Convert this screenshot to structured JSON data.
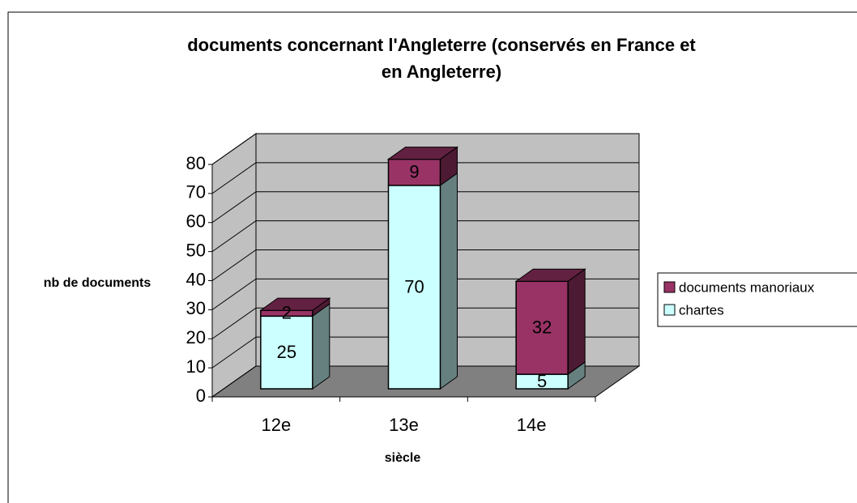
{
  "chart_data": {
    "type": "bar3d-stacked",
    "title_lines": [
      "documents concernant l'Angleterre (conservés en France et",
      "en Angleterre)"
    ],
    "y_label": "nb de documents",
    "x_label": "siècle",
    "categories": [
      "12e",
      "13e",
      "14e"
    ],
    "series": [
      {
        "name": "chartes",
        "color": "#ccffff",
        "values": [
          25,
          70,
          5
        ]
      },
      {
        "name": "documents manoriaux",
        "color": "#993366",
        "values": [
          2,
          9,
          32
        ]
      }
    ],
    "ylim": [
      0,
      80
    ],
    "yticks": [
      0,
      10,
      20,
      30,
      40,
      50,
      60,
      70,
      80
    ],
    "stacked": true,
    "grid": true,
    "legend": "right"
  }
}
